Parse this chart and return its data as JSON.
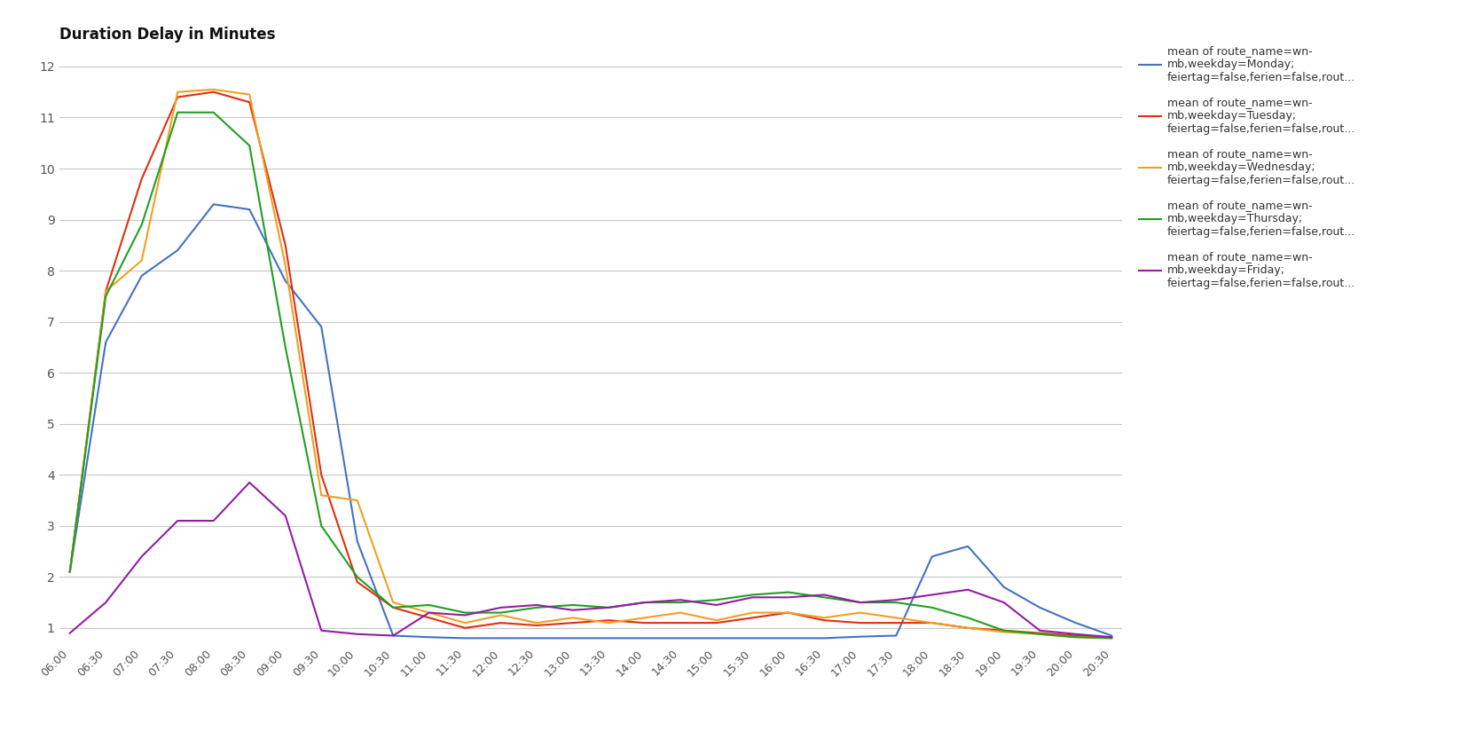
{
  "title": "Duration Delay in Minutes",
  "background_color": "#ffffff",
  "grid_color": "#c8c8c8",
  "ylim": [
    0.7,
    12.3
  ],
  "yticks": [
    1,
    2,
    3,
    4,
    5,
    6,
    7,
    8,
    9,
    10,
    11,
    12
  ],
  "legend_labels": [
    "mean of route_name=wn-\nmb,weekday=Monday;\nfeiertag=false,ferien=false,rout...",
    "mean of route_name=wn-\nmb,weekday=Tuesday;\nfeiertag=false,ferien=false,rout...",
    "mean of route_name=wn-\nmb,weekday=Wednesday;\nfeiertag=false,ferien=false,rout...",
    "mean of route_name=wn-\nmb,weekday=Thursday;\nfeiertag=false,ferien=false,rout...",
    "mean of route_name=wn-\nmb,weekday=Friday;\nfeiertag=false,ferien=false,rout..."
  ],
  "line_colors": [
    "#4472c4",
    "#e03010",
    "#f0a020",
    "#20a020",
    "#9020a0"
  ],
  "time_labels": [
    "06:00",
    "06:30",
    "07:00",
    "07:30",
    "08:00",
    "08:30",
    "09:00",
    "09:30",
    "10:00",
    "10:30",
    "11:00",
    "11:30",
    "12:00",
    "12:30",
    "13:00",
    "13:30",
    "14:00",
    "14:30",
    "15:00",
    "15:30",
    "16:00",
    "16:30",
    "17:00",
    "17:30",
    "18:00",
    "18:30",
    "19:00",
    "19:30",
    "20:00",
    "20:30"
  ],
  "series": {
    "Monday": [
      2.1,
      6.6,
      7.9,
      8.4,
      9.3,
      9.2,
      7.8,
      6.9,
      2.7,
      0.85,
      0.82,
      0.8,
      0.8,
      0.8,
      0.8,
      0.8,
      0.8,
      0.8,
      0.8,
      0.8,
      0.8,
      0.8,
      0.83,
      0.85,
      2.4,
      2.6,
      1.8,
      1.4,
      1.1,
      0.85
    ],
    "Tuesday": [
      2.1,
      7.6,
      9.8,
      11.4,
      11.5,
      11.3,
      8.5,
      4.0,
      1.9,
      1.4,
      1.2,
      1.0,
      1.1,
      1.05,
      1.1,
      1.15,
      1.1,
      1.1,
      1.1,
      1.2,
      1.3,
      1.15,
      1.1,
      1.1,
      1.1,
      1.0,
      0.95,
      0.9,
      0.85,
      0.82
    ],
    "Wednesday": [
      2.1,
      7.6,
      8.2,
      11.5,
      11.55,
      11.45,
      8.1,
      3.6,
      3.5,
      1.5,
      1.3,
      1.1,
      1.25,
      1.1,
      1.2,
      1.1,
      1.2,
      1.3,
      1.15,
      1.3,
      1.3,
      1.2,
      1.3,
      1.2,
      1.1,
      1.0,
      0.92,
      0.88,
      0.82,
      0.8
    ],
    "Thursday": [
      2.1,
      7.5,
      8.9,
      11.1,
      11.1,
      10.45,
      6.5,
      3.0,
      2.0,
      1.4,
      1.45,
      1.3,
      1.3,
      1.4,
      1.45,
      1.4,
      1.5,
      1.5,
      1.55,
      1.65,
      1.7,
      1.6,
      1.5,
      1.5,
      1.4,
      1.2,
      0.95,
      0.88,
      0.82,
      0.8
    ],
    "Friday": [
      0.9,
      1.5,
      2.4,
      3.1,
      3.1,
      3.85,
      3.2,
      0.95,
      0.88,
      0.85,
      1.3,
      1.25,
      1.4,
      1.45,
      1.35,
      1.4,
      1.5,
      1.55,
      1.45,
      1.6,
      1.6,
      1.65,
      1.5,
      1.55,
      1.65,
      1.75,
      1.5,
      0.95,
      0.88,
      0.82
    ]
  }
}
